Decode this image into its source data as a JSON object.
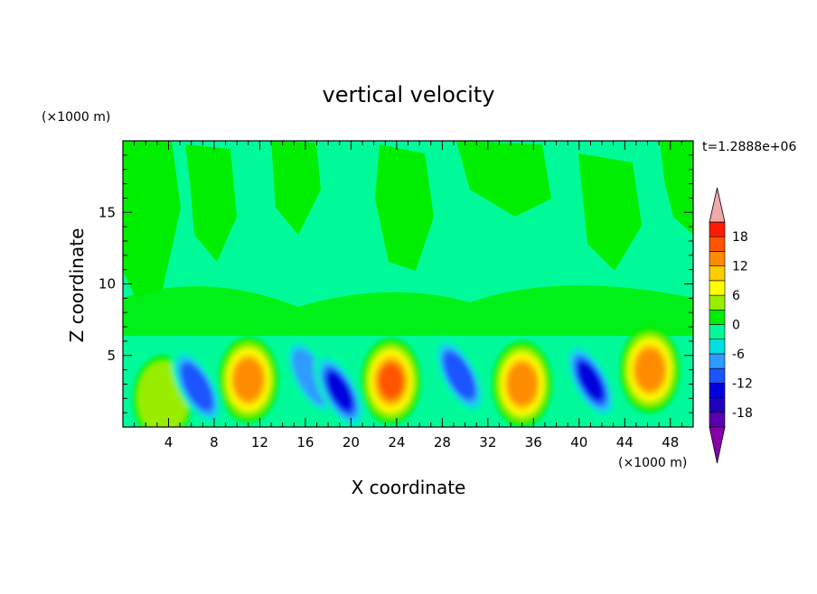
{
  "chart_data": {
    "type": "heatmap",
    "title": "vertical velocity",
    "xlabel": "X coordinate",
    "ylabel": "Z coordinate",
    "x_unit": "(×1000 m)",
    "y_unit": "(×1000 m)",
    "time_label": "t=1.2888e+06",
    "xlim": [
      0,
      50
    ],
    "ylim": [
      0,
      20
    ],
    "x_ticks": [
      4,
      8,
      12,
      16,
      20,
      24,
      28,
      32,
      36,
      40,
      44,
      48
    ],
    "y_ticks": [
      5,
      10,
      15
    ],
    "colorbar": {
      "levels": [
        -21,
        -18,
        -15,
        -12,
        -9,
        -6,
        -3,
        0,
        3,
        6,
        9,
        12,
        15,
        18,
        21
      ],
      "tick_labels": [
        18,
        12,
        6,
        0,
        -6,
        -12,
        -18
      ],
      "colors": [
        "#8800aa",
        "#5a00b0",
        "#2000b8",
        "#0000dd",
        "#1a55ff",
        "#2e9bff",
        "#00e0e0",
        "#00fa9a",
        "#00ee00",
        "#99ee00",
        "#ffff00",
        "#ffcc00",
        "#ff8c00",
        "#ff5500",
        "#ff1a00",
        "#f0a8a8"
      ],
      "extend": "both"
    },
    "features": [
      {
        "x": 3.5,
        "z": 2.0,
        "value": 5
      },
      {
        "x": 6.5,
        "z": 2.8,
        "value": -11
      },
      {
        "x": 11.0,
        "z": 3.3,
        "value": 14
      },
      {
        "x": 16.5,
        "z": 3.5,
        "value": -9
      },
      {
        "x": 19.0,
        "z": 2.5,
        "value": -13
      },
      {
        "x": 23.5,
        "z": 3.2,
        "value": 17
      },
      {
        "x": 29.5,
        "z": 3.6,
        "value": -11
      },
      {
        "x": 35.0,
        "z": 3.0,
        "value": 14
      },
      {
        "x": 41.0,
        "z": 3.2,
        "value": -13
      },
      {
        "x": 46.2,
        "z": 4.0,
        "value": 15
      }
    ]
  }
}
